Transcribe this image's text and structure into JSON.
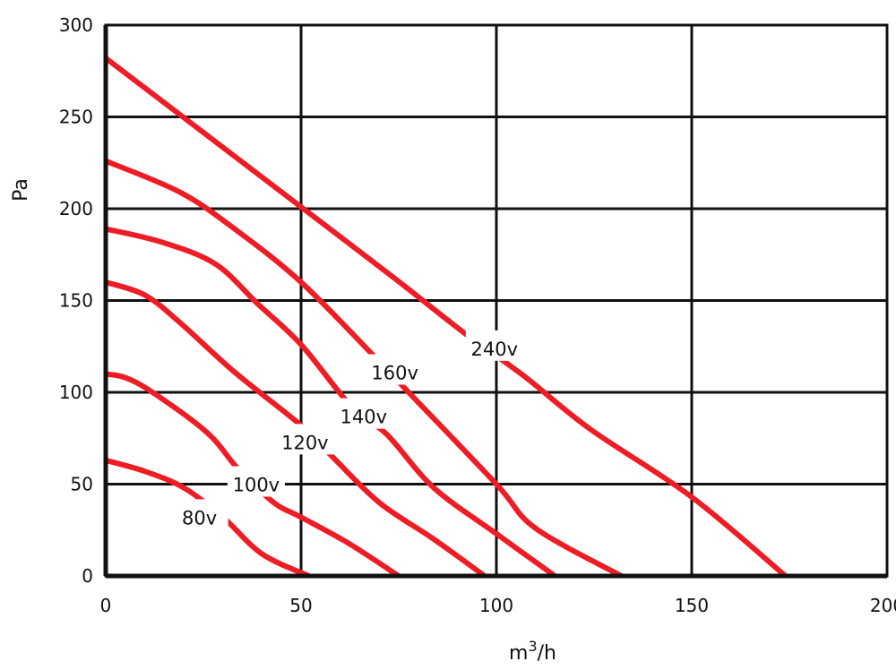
{
  "chart_data": {
    "type": "line",
    "title": "",
    "xlabel": "m",
    "xlabel_sup": "3",
    "xlabel_suffix": "/h",
    "ylabel": "Pa",
    "xlim": [
      0,
      200
    ],
    "ylim": [
      0,
      300
    ],
    "xticks": [
      0,
      50,
      100,
      150,
      200
    ],
    "yticks": [
      0,
      50,
      100,
      150,
      200,
      250,
      300
    ],
    "grid": true,
    "line_color": "#ee1c25",
    "series": [
      {
        "name": "80v",
        "label_at": [
          24,
          32
        ],
        "points": [
          [
            0,
            63
          ],
          [
            10,
            57
          ],
          [
            20,
            48
          ],
          [
            30,
            32
          ],
          [
            40,
            12
          ],
          [
            52,
            0
          ]
        ]
      },
      {
        "name": "100v",
        "label_at": [
          38.5,
          50
        ],
        "points": [
          [
            0,
            110
          ],
          [
            5,
            108
          ],
          [
            12,
            100
          ],
          [
            26,
            78
          ],
          [
            34,
            58
          ],
          [
            43,
            40
          ],
          [
            50,
            32
          ],
          [
            62,
            18
          ],
          [
            75,
            0
          ]
        ]
      },
      {
        "name": "120v",
        "label_at": [
          51,
          73
        ],
        "points": [
          [
            0,
            160
          ],
          [
            10,
            153
          ],
          [
            19,
            138
          ],
          [
            33,
            111
          ],
          [
            50,
            82
          ],
          [
            58,
            65
          ],
          [
            70,
            40
          ],
          [
            84,
            20
          ],
          [
            97,
            0
          ]
        ]
      },
      {
        "name": "140v",
        "label_at": [
          66,
          87
        ],
        "points": [
          [
            0,
            189
          ],
          [
            14,
            182
          ],
          [
            28,
            170
          ],
          [
            39,
            148
          ],
          [
            50,
            126
          ],
          [
            63,
            92
          ],
          [
            72,
            77
          ],
          [
            84,
            48
          ],
          [
            100,
            23
          ],
          [
            115,
            0
          ]
        ]
      },
      {
        "name": "160v",
        "label_at": [
          74,
          111
        ],
        "points": [
          [
            0,
            226
          ],
          [
            19,
            209
          ],
          [
            33,
            189
          ],
          [
            50,
            160
          ],
          [
            69,
            119
          ],
          [
            78,
            99
          ],
          [
            100,
            50
          ],
          [
            110,
            26
          ],
          [
            132,
            0
          ]
        ]
      },
      {
        "name": "240v",
        "label_at": [
          99.5,
          124
        ],
        "points": [
          [
            0,
            282
          ],
          [
            50,
            201
          ],
          [
            74,
            162
          ],
          [
            92,
            132
          ],
          [
            107,
            109
          ],
          [
            124,
            80
          ],
          [
            150,
            43
          ],
          [
            174,
            0
          ]
        ]
      }
    ]
  }
}
